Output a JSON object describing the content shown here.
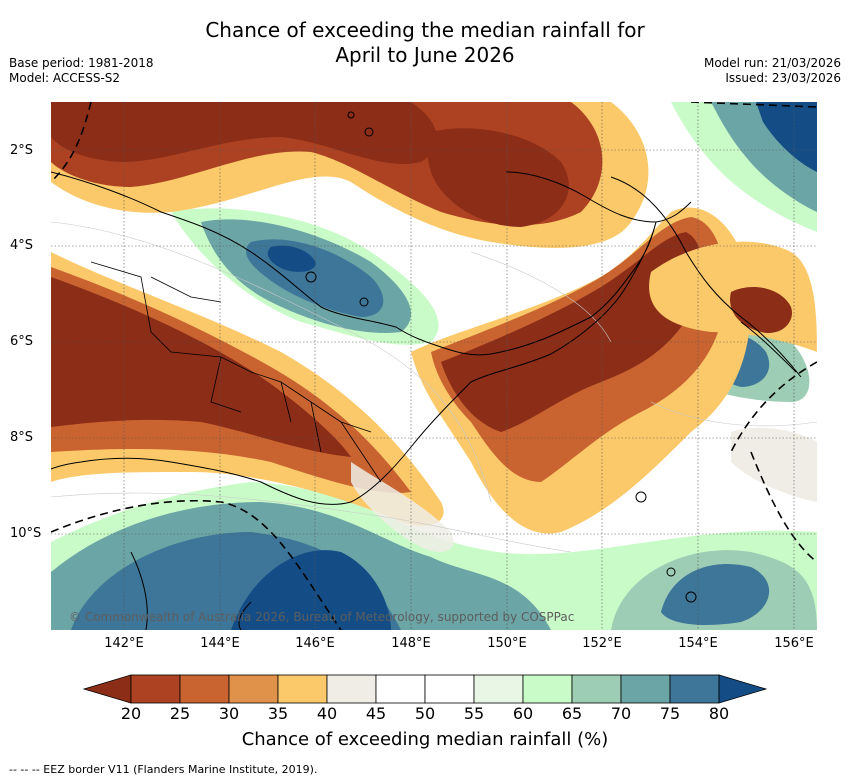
{
  "title_line1": "Chance of exceeding the median rainfall for",
  "title_line2": "April to June 2026",
  "base_period": "Base period: 1981-2018",
  "model": "Model: ACCESS-S2",
  "model_run": "Model run: 21/03/2026",
  "issued": "Issued: 23/03/2026",
  "map": {
    "lat_labels": [
      "2°S",
      "4°S",
      "6°S",
      "8°S",
      "10°S"
    ],
    "lon_labels": [
      "142°E",
      "144°E",
      "146°E",
      "148°E",
      "150°E",
      "152°E",
      "154°E",
      "156°E"
    ],
    "copyright": "© Commonwealth of Australia 2026, Bureau of Meteorology, supported by COSPPac"
  },
  "colorbar": {
    "ticks": [
      "20",
      "25",
      "30",
      "35",
      "40",
      "45",
      "50",
      "55",
      "60",
      "65",
      "70",
      "75",
      "80"
    ],
    "colors": [
      "#8b2d17",
      "#ad4222",
      "#c96431",
      "#e0924a",
      "#fcc96a",
      "#efede6",
      "#ffffff",
      "#ffffff",
      "#e9f6e6",
      "#c9fbc8",
      "#9dcdb5",
      "#6ca5a6",
      "#3d7698",
      "#144d85"
    ],
    "label": "Chance of exceeding median rainfall (%)"
  },
  "footnote": "--  --  -- EEZ border V11 (Flanders Marine Institute, 2019)."
}
